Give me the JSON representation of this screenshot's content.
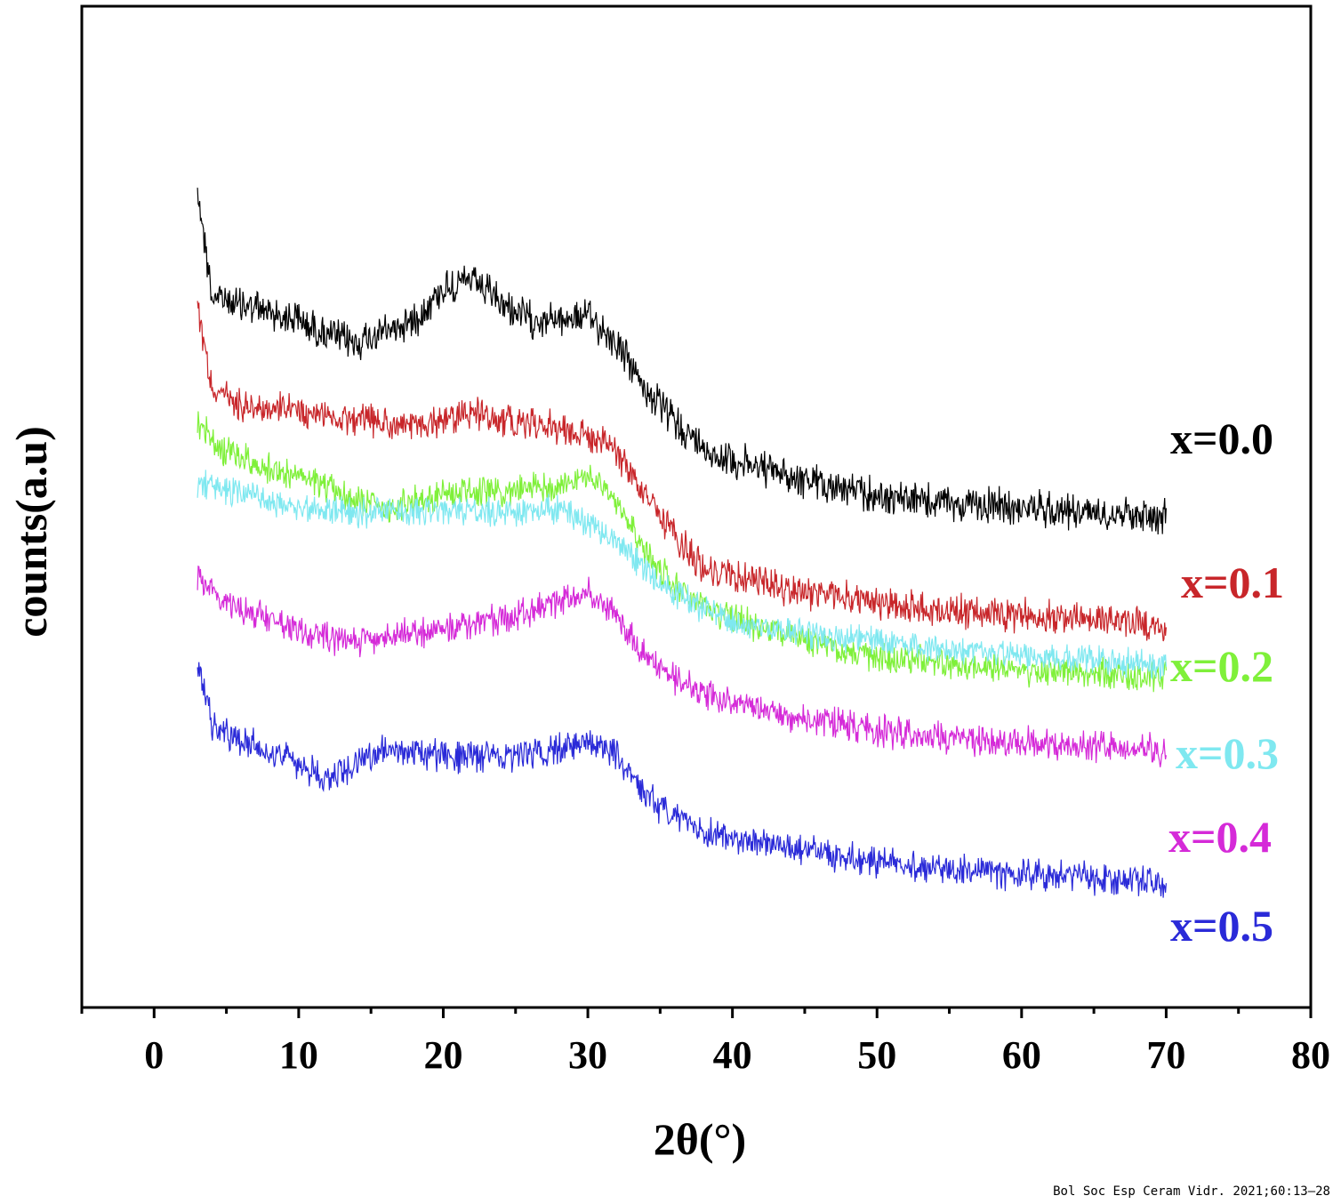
{
  "chart_data": {
    "type": "line",
    "title": "",
    "xlabel": "2θ(°)",
    "ylabel": "counts(a.u)",
    "xlim": [
      -5,
      80
    ],
    "xticks": [
      0,
      10,
      20,
      30,
      40,
      50,
      60,
      70,
      80
    ],
    "yticks_shown": false,
    "grid": false,
    "legend": "inline-right",
    "series": [
      {
        "name": "x=0.0",
        "color": "#000000",
        "profile": [
          [
            3,
            1.0
          ],
          [
            4,
            0.72
          ],
          [
            6,
            0.7
          ],
          [
            8,
            0.68
          ],
          [
            10,
            0.66
          ],
          [
            12,
            0.62
          ],
          [
            14,
            0.6
          ],
          [
            16,
            0.63
          ],
          [
            18,
            0.66
          ],
          [
            20,
            0.74
          ],
          [
            22,
            0.76
          ],
          [
            24,
            0.7
          ],
          [
            26,
            0.66
          ],
          [
            28,
            0.66
          ],
          [
            30,
            0.67
          ],
          [
            32,
            0.6
          ],
          [
            34,
            0.48
          ],
          [
            36,
            0.4
          ],
          [
            38,
            0.33
          ],
          [
            40,
            0.3
          ],
          [
            45,
            0.25
          ],
          [
            50,
            0.21
          ],
          [
            55,
            0.19
          ],
          [
            60,
            0.18
          ],
          [
            65,
            0.17
          ],
          [
            70,
            0.16
          ]
        ]
      },
      {
        "name": "x=0.1",
        "color": "#c8262a",
        "profile": [
          [
            3,
            0.9
          ],
          [
            4,
            0.68
          ],
          [
            6,
            0.64
          ],
          [
            10,
            0.62
          ],
          [
            14,
            0.6
          ],
          [
            18,
            0.58
          ],
          [
            20,
            0.6
          ],
          [
            22,
            0.62
          ],
          [
            24,
            0.6
          ],
          [
            28,
            0.58
          ],
          [
            30,
            0.56
          ],
          [
            32,
            0.52
          ],
          [
            34,
            0.4
          ],
          [
            36,
            0.3
          ],
          [
            38,
            0.22
          ],
          [
            40,
            0.2
          ],
          [
            45,
            0.16
          ],
          [
            50,
            0.13
          ],
          [
            55,
            0.11
          ],
          [
            60,
            0.1
          ],
          [
            65,
            0.09
          ],
          [
            68,
            0.08
          ],
          [
            70,
            0.06
          ]
        ]
      },
      {
        "name": "x=0.2",
        "color": "#7ff03a",
        "profile": [
          [
            3,
            0.78
          ],
          [
            5,
            0.7
          ],
          [
            8,
            0.66
          ],
          [
            10,
            0.64
          ],
          [
            14,
            0.58
          ],
          [
            16,
            0.56
          ],
          [
            20,
            0.6
          ],
          [
            24,
            0.6
          ],
          [
            28,
            0.62
          ],
          [
            30,
            0.64
          ],
          [
            32,
            0.58
          ],
          [
            34,
            0.45
          ],
          [
            36,
            0.36
          ],
          [
            38,
            0.3
          ],
          [
            40,
            0.28
          ],
          [
            45,
            0.22
          ],
          [
            50,
            0.18
          ],
          [
            55,
            0.16
          ],
          [
            60,
            0.15
          ],
          [
            65,
            0.14
          ],
          [
            70,
            0.13
          ]
        ]
      },
      {
        "name": "x=0.3",
        "color": "#7fe8f0",
        "profile": [
          [
            3,
            0.62
          ],
          [
            6,
            0.6
          ],
          [
            10,
            0.56
          ],
          [
            14,
            0.55
          ],
          [
            18,
            0.55
          ],
          [
            22,
            0.55
          ],
          [
            26,
            0.55
          ],
          [
            28,
            0.56
          ],
          [
            30,
            0.52
          ],
          [
            32,
            0.48
          ],
          [
            34,
            0.4
          ],
          [
            36,
            0.34
          ],
          [
            38,
            0.3
          ],
          [
            40,
            0.27
          ],
          [
            45,
            0.24
          ],
          [
            50,
            0.22
          ],
          [
            55,
            0.2
          ],
          [
            60,
            0.18
          ],
          [
            65,
            0.17
          ],
          [
            70,
            0.16
          ]
        ]
      },
      {
        "name": "x=0.4",
        "color": "#d52ad8",
        "profile": [
          [
            3,
            0.56
          ],
          [
            5,
            0.5
          ],
          [
            8,
            0.45
          ],
          [
            10,
            0.42
          ],
          [
            14,
            0.4
          ],
          [
            18,
            0.42
          ],
          [
            22,
            0.44
          ],
          [
            26,
            0.47
          ],
          [
            28,
            0.5
          ],
          [
            30,
            0.52
          ],
          [
            32,
            0.46
          ],
          [
            34,
            0.36
          ],
          [
            36,
            0.3
          ],
          [
            38,
            0.27
          ],
          [
            40,
            0.24
          ],
          [
            45,
            0.2
          ],
          [
            50,
            0.17
          ],
          [
            55,
            0.15
          ],
          [
            60,
            0.14
          ],
          [
            65,
            0.13
          ],
          [
            70,
            0.12
          ]
        ]
      },
      {
        "name": "x=0.5",
        "color": "#2a2ad8",
        "profile": [
          [
            3,
            0.6
          ],
          [
            4,
            0.44
          ],
          [
            6,
            0.4
          ],
          [
            10,
            0.34
          ],
          [
            12,
            0.3
          ],
          [
            14,
            0.34
          ],
          [
            16,
            0.38
          ],
          [
            20,
            0.36
          ],
          [
            24,
            0.36
          ],
          [
            28,
            0.38
          ],
          [
            30,
            0.4
          ],
          [
            32,
            0.36
          ],
          [
            34,
            0.26
          ],
          [
            36,
            0.2
          ],
          [
            38,
            0.17
          ],
          [
            40,
            0.15
          ],
          [
            45,
            0.12
          ],
          [
            50,
            0.09
          ],
          [
            55,
            0.07
          ],
          [
            60,
            0.06
          ],
          [
            65,
            0.05
          ],
          [
            70,
            0.04
          ]
        ]
      }
    ]
  },
  "citation": "Bol Soc Esp Ceram Vidr. 2021;60:13–28"
}
